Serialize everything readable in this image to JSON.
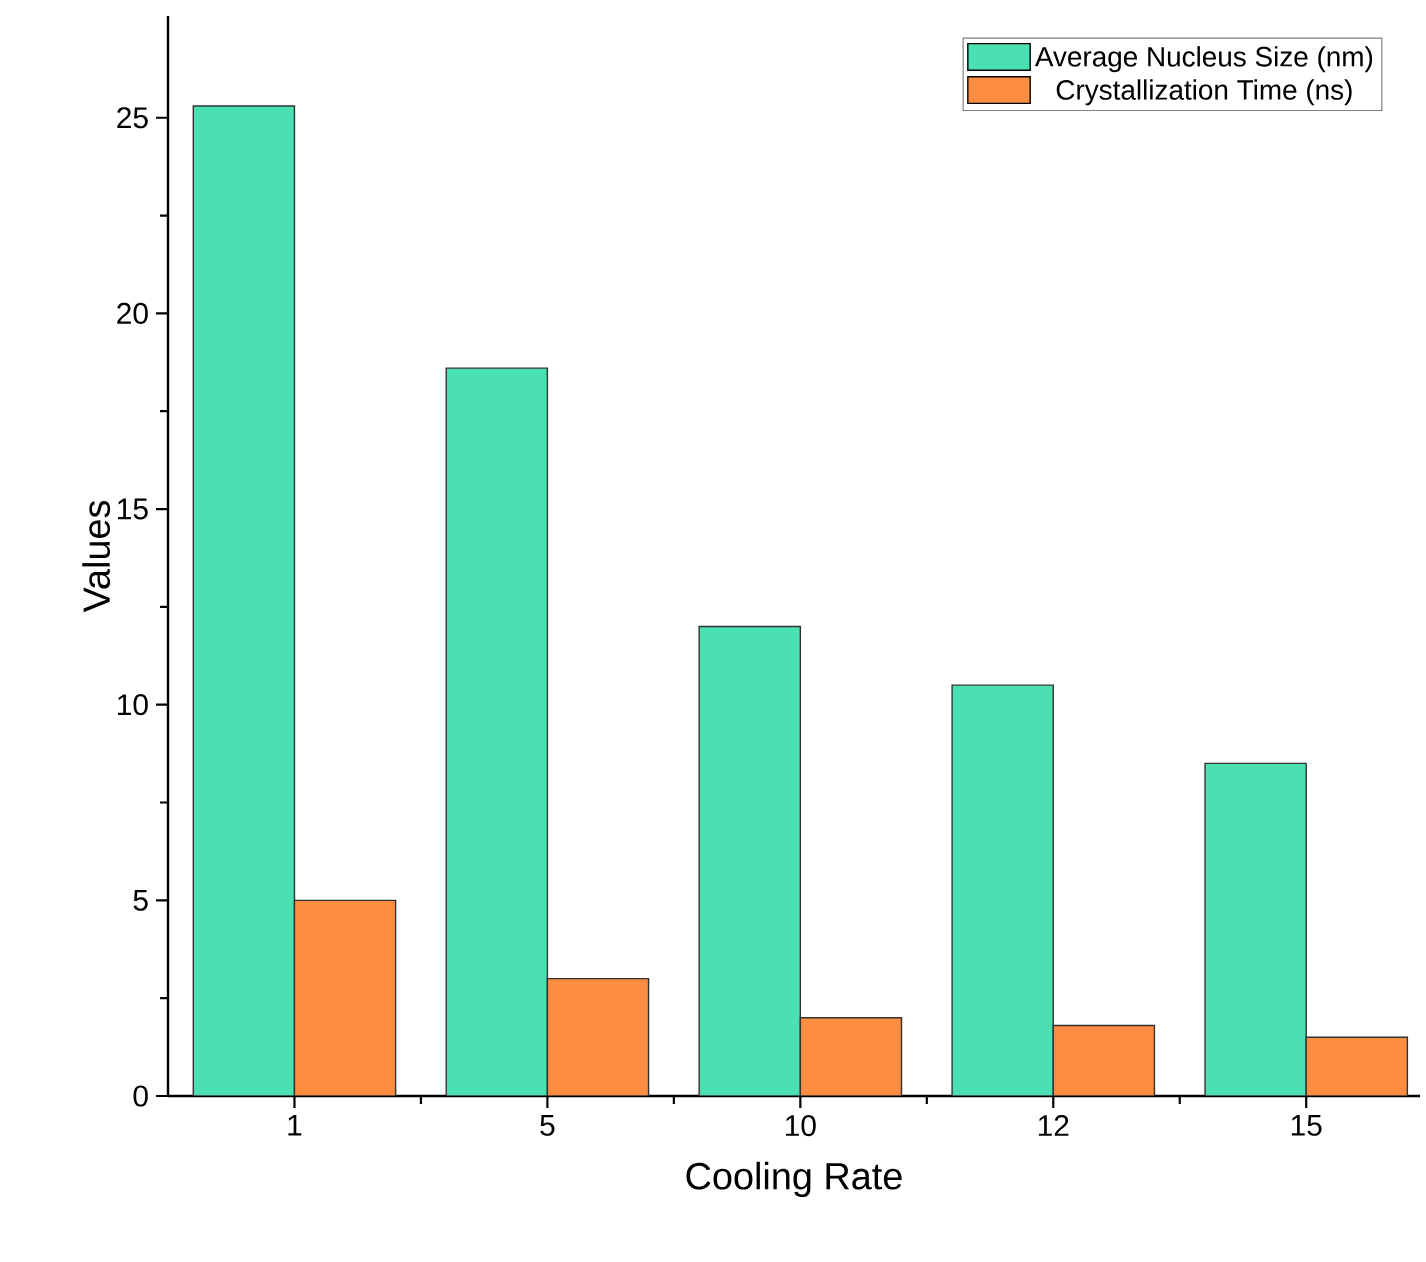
{
  "chart_data": {
    "type": "bar",
    "xlabel": "Cooling Rate",
    "ylabel": "Values",
    "categories": [
      "1",
      "5",
      "10",
      "12",
      "15"
    ],
    "series": [
      {
        "name": "Average Nucleus Size (nm)",
        "color": "#4ae0b2",
        "values": [
          25.3,
          18.6,
          12,
          10.5,
          8.5
        ]
      },
      {
        "name": "Crystallization Time (ns)",
        "color": "#fd8d40",
        "values": [
          5,
          3,
          2,
          1.8,
          1.5
        ]
      }
    ],
    "ylim": [
      0,
      27.6
    ],
    "yticks": [
      0,
      5,
      10,
      15,
      20,
      25
    ],
    "grid": false,
    "legend": "top right"
  }
}
